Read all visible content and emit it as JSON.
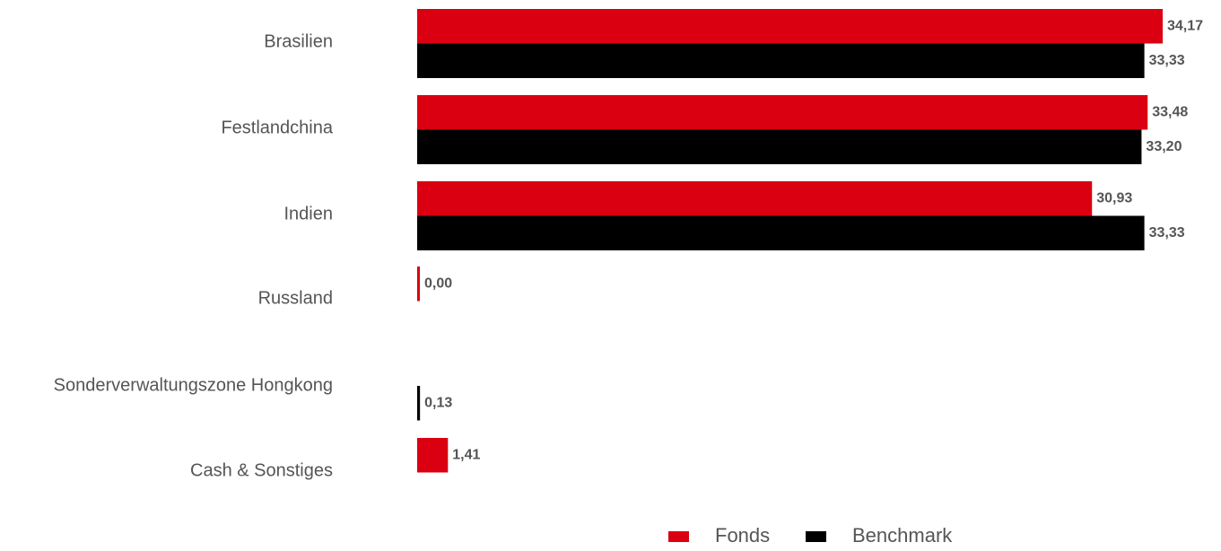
{
  "chart_data": {
    "type": "bar",
    "orientation": "horizontal",
    "categories": [
      "Brasilien",
      "Festlandchina",
      "Indien",
      "Russland",
      "Sonderverwaltungszone Hongkong",
      "Cash & Sonstiges"
    ],
    "series": [
      {
        "name": "Fonds",
        "color": "#db0011",
        "values": [
          34.17,
          33.48,
          30.93,
          0.0,
          null,
          1.41
        ],
        "labels": [
          "34,17",
          "33,48",
          "30,93",
          "0,00",
          "",
          "1,41"
        ]
      },
      {
        "name": "Benchmark",
        "color": "#000000",
        "values": [
          33.33,
          33.2,
          33.33,
          null,
          0.13,
          null
        ],
        "labels": [
          "33,33",
          "33,20",
          "33,33",
          "",
          "0,13",
          ""
        ]
      }
    ],
    "xlim": [
      0,
      35
    ],
    "grid": false,
    "legend": "bottom-center",
    "title": "",
    "xlabel": "",
    "ylabel": ""
  }
}
